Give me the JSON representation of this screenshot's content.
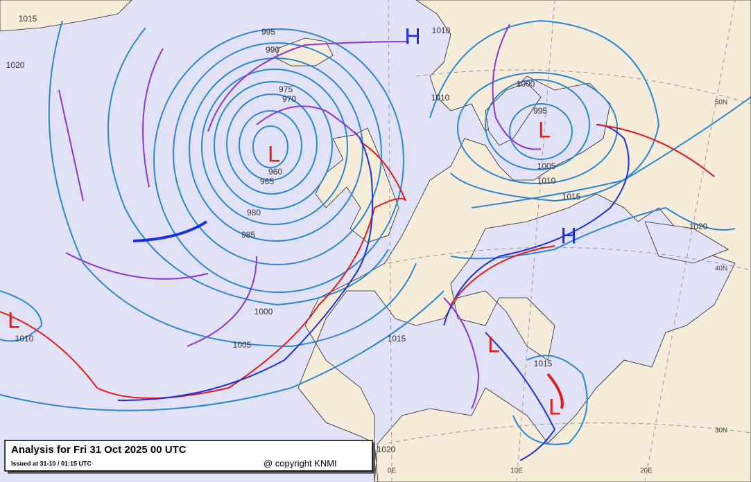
{
  "header": {
    "title": "Analysis for Fri 31 Oct 2025 00 UTC",
    "issued": "Issued at 31-10 / 01:15 UTC",
    "copyright": "@ copyright KNMI"
  },
  "isobar_labels": [
    "1015",
    "1020",
    "995",
    "990",
    "975",
    "970",
    "960",
    "965",
    "980",
    "985",
    "1000",
    "1005",
    "1010",
    "1015",
    "1015",
    "1020",
    "1010",
    "1010",
    "1000",
    "995",
    "1005",
    "1010",
    "1015",
    "1020"
  ],
  "pressure_centers": [
    "L",
    "L",
    "H",
    "L",
    "H",
    "L",
    "L"
  ],
  "grid_labels": [
    "50N",
    "40N",
    "30N",
    "0E",
    "10E",
    "20E"
  ]
}
